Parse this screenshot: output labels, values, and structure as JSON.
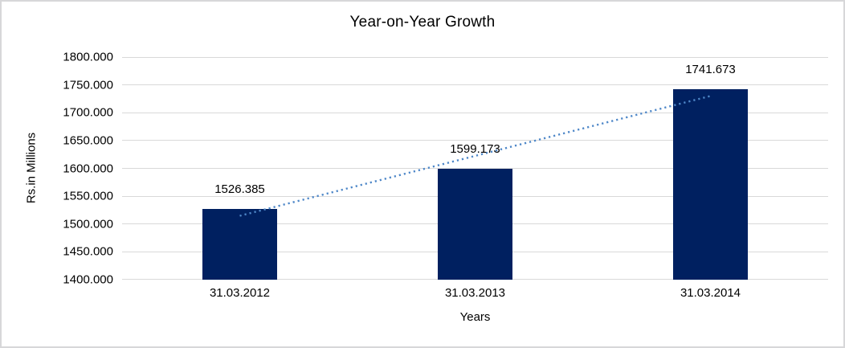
{
  "chart_data": {
    "type": "bar",
    "title": "Year-on-Year Growth",
    "xlabel": "Years",
    "ylabel": "Rs.in Millions",
    "categories": [
      "31.03.2012",
      "31.03.2013",
      "31.03.2014"
    ],
    "values": [
      1526.385,
      1599.173,
      1741.673
    ],
    "data_labels": [
      "1526.385",
      "1599.173",
      "1741.673"
    ],
    "ylim": [
      1400,
      1800
    ],
    "ytick_step": 50,
    "ytick_labels": [
      "1400.000",
      "1450.000",
      "1500.000",
      "1550.000",
      "1600.000",
      "1650.000",
      "1700.000",
      "1750.000",
      "1800.000"
    ],
    "grid": true,
    "legend": "none",
    "trendline": {
      "type": "linear",
      "style": "dotted"
    },
    "colors": {
      "bar": "#002060",
      "trendline": "#4e87c8",
      "gridline": "#d9d9d9",
      "text": "#000000",
      "frame_border": "#d7d7d9",
      "background": "#ffffff"
    }
  }
}
